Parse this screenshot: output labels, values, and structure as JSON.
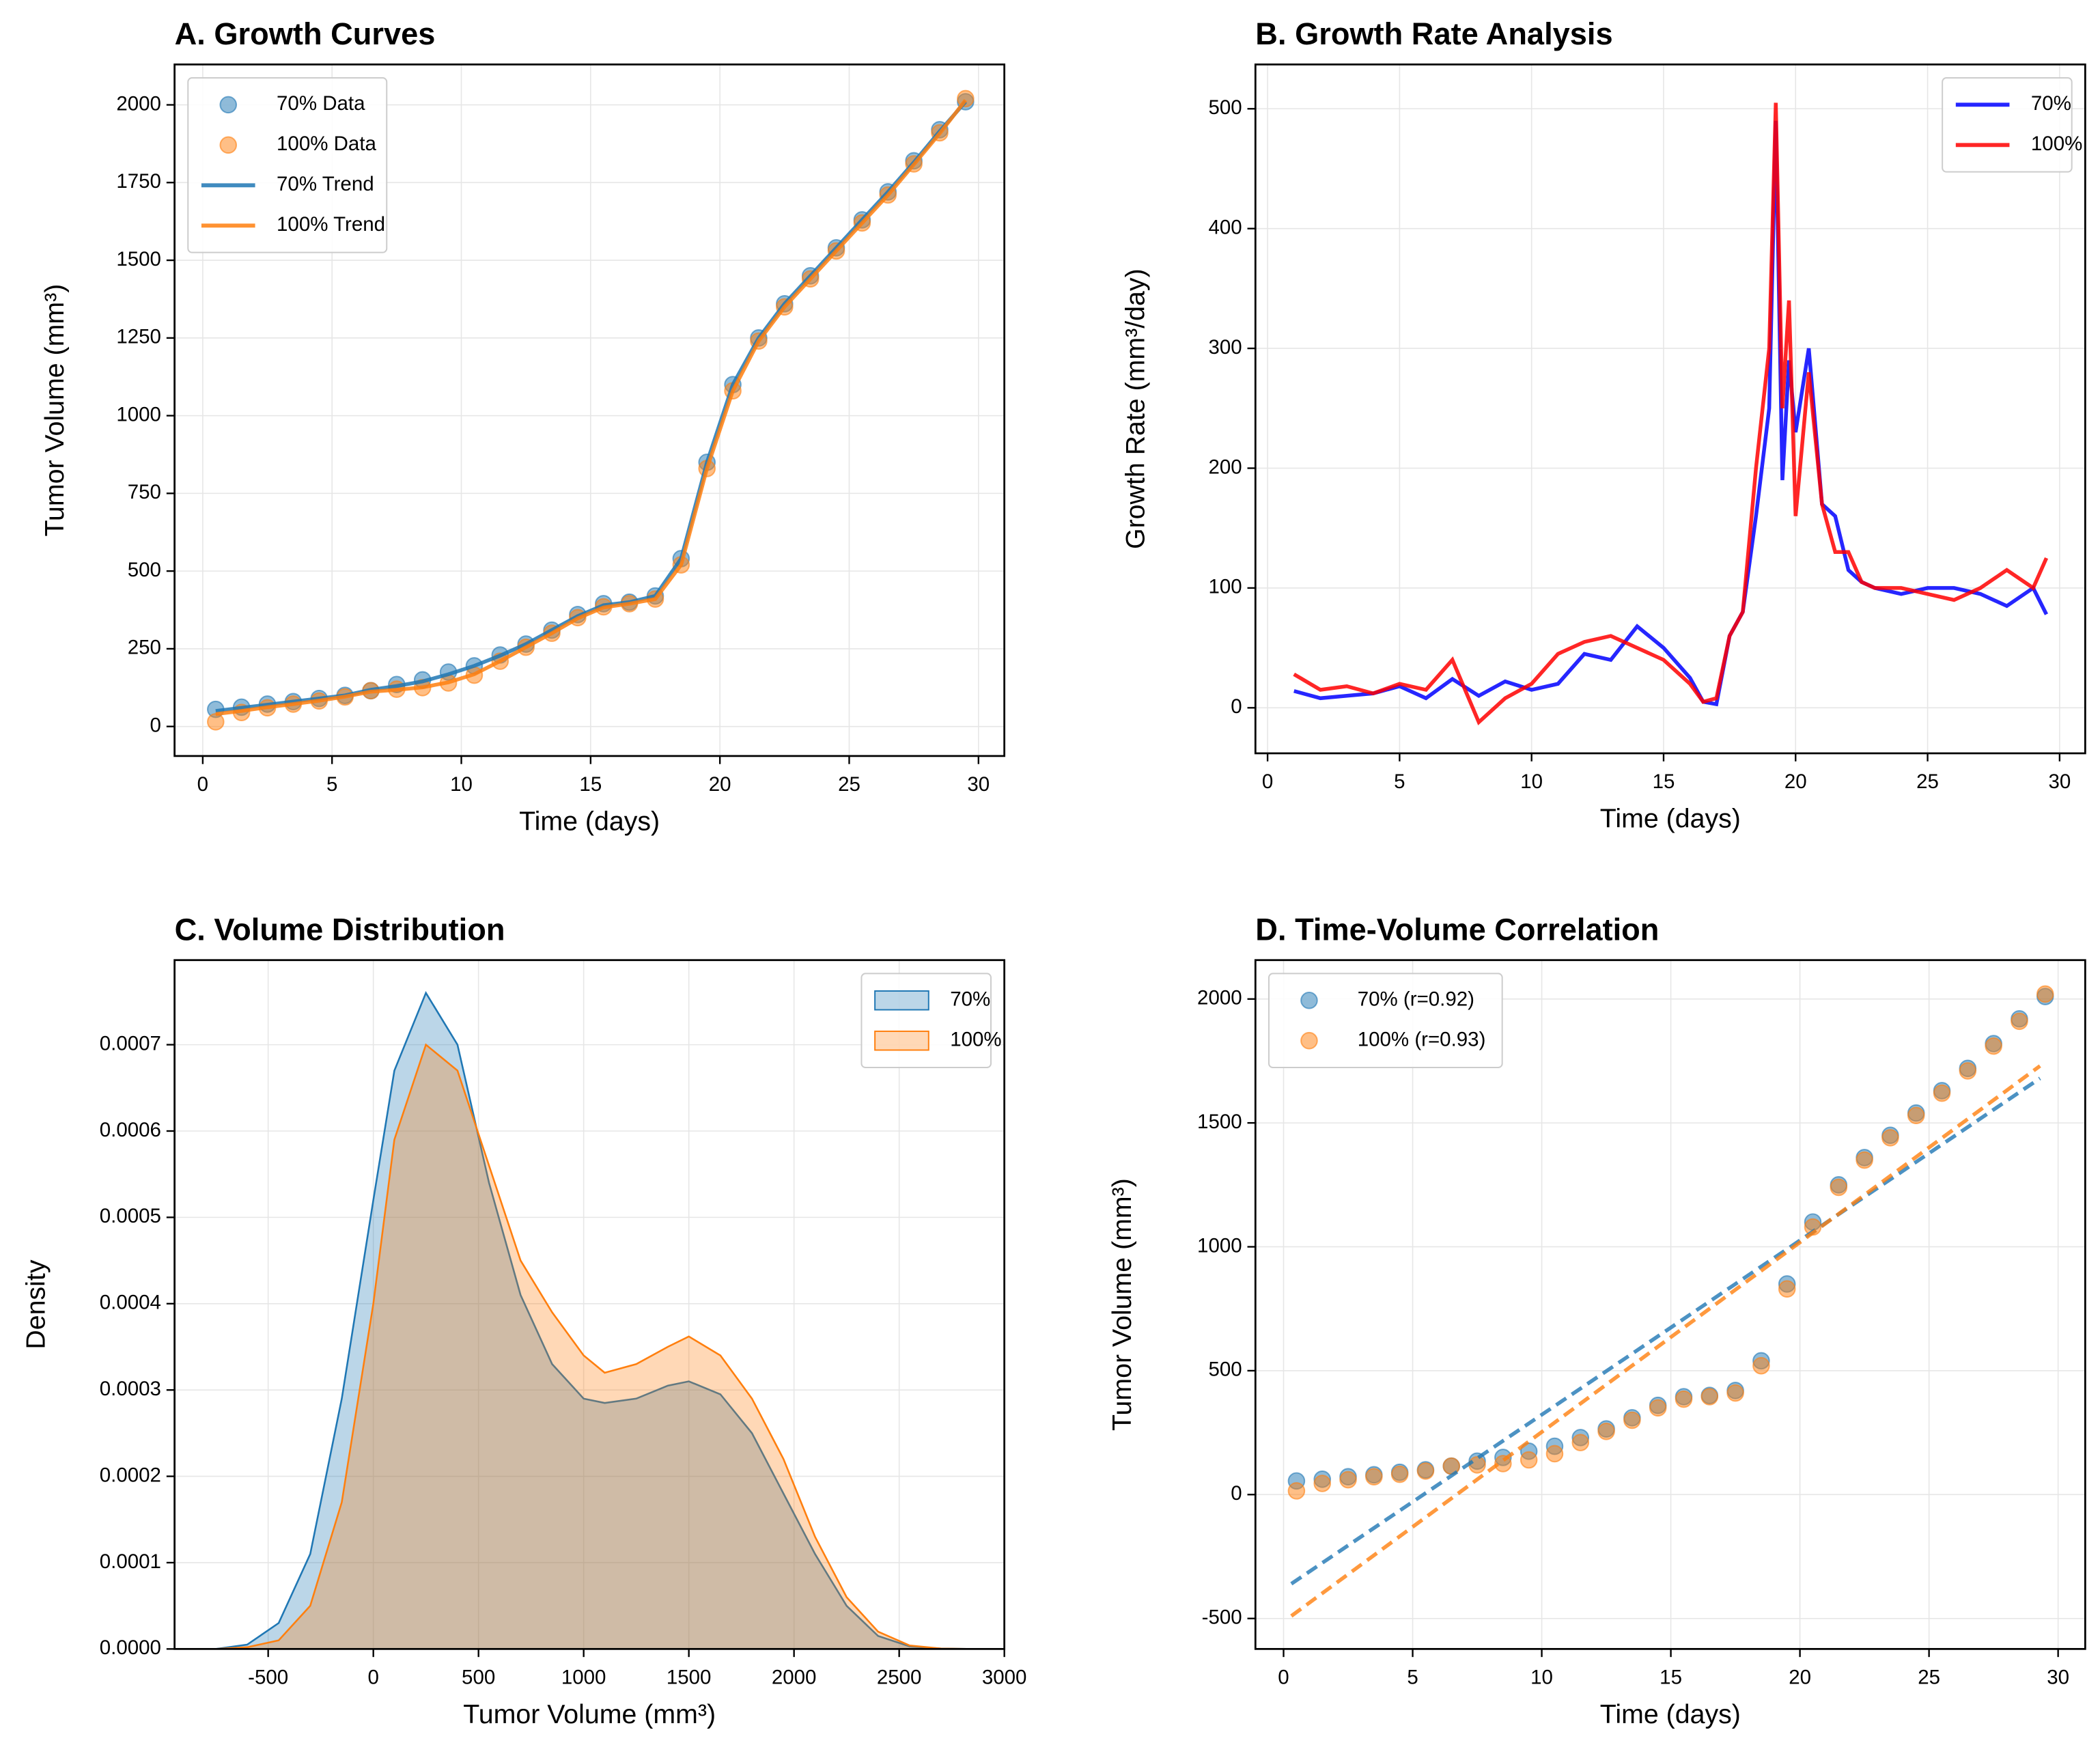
{
  "chart_data": [
    {
      "type": "scatter",
      "title": "A. Growth Curves",
      "xlabel": "Time (days)",
      "ylabel": "Tumor Volume (mm³)",
      "x": [
        0.5,
        1.5,
        2.5,
        3.5,
        4.5,
        5.5,
        6.5,
        7.5,
        8.5,
        9.5,
        10.5,
        11.5,
        12.5,
        13.5,
        14.5,
        15.5,
        16.5,
        17.5,
        18.5,
        19.5,
        20.5,
        21.5,
        22.5,
        23.5,
        24.5,
        25.5,
        26.5,
        27.5,
        28.5,
        29.5
      ],
      "series": [
        {
          "name": "70% Data",
          "style": "scatter",
          "color": "#1f77b4",
          "values": [
            55,
            62,
            72,
            80,
            90,
            100,
            115,
            135,
            150,
            175,
            195,
            230,
            265,
            310,
            360,
            395,
            400,
            420,
            540,
            850,
            1100,
            1250,
            1360,
            1450,
            1540,
            1630,
            1720,
            1820,
            1920,
            2010
          ]
        },
        {
          "name": "100% Data",
          "style": "scatter",
          "color": "#ff7f0e",
          "values": [
            15,
            45,
            60,
            72,
            82,
            95,
            115,
            120,
            125,
            140,
            165,
            210,
            255,
            300,
            350,
            385,
            395,
            410,
            520,
            830,
            1080,
            1240,
            1350,
            1440,
            1530,
            1620,
            1710,
            1810,
            1910,
            2020
          ]
        },
        {
          "name": "70% Trend",
          "style": "line",
          "color": "#1f77b4",
          "values": [
            50,
            60,
            70,
            80,
            90,
            100,
            118,
            130,
            145,
            168,
            195,
            228,
            265,
            310,
            355,
            390,
            400,
            420,
            540,
            850,
            1100,
            1250,
            1360,
            1450,
            1540,
            1630,
            1720,
            1815,
            1915,
            2010
          ]
        },
        {
          "name": "100% Trend",
          "style": "line",
          "color": "#ff7f0e",
          "values": [
            40,
            50,
            62,
            72,
            83,
            96,
            112,
            118,
            126,
            142,
            168,
            210,
            255,
            300,
            348,
            383,
            395,
            410,
            520,
            830,
            1080,
            1240,
            1350,
            1440,
            1530,
            1620,
            1710,
            1808,
            1908,
            2015
          ]
        }
      ],
      "xlim": [
        -1.09,
        31.0
      ],
      "ylim": [
        -95,
        2130
      ],
      "xticks": [
        0,
        5,
        10,
        15,
        20,
        25,
        30
      ],
      "yticks": [
        0,
        250,
        500,
        750,
        1000,
        1250,
        1500,
        1750,
        2000
      ],
      "grid": true,
      "legend": "upper left"
    },
    {
      "type": "line",
      "title": "B. Growth Rate Analysis",
      "xlabel": "Time (days)",
      "ylabel": "Growth Rate (mm³/day)",
      "x": [
        1,
        2,
        3,
        4,
        5,
        6,
        7,
        8,
        9,
        10,
        11,
        12,
        13,
        14,
        15,
        16,
        16.5,
        17,
        17.5,
        18,
        18.5,
        19,
        19.25,
        19.5,
        19.75,
        20,
        20.5,
        21,
        21.5,
        22,
        22.5,
        23,
        24,
        25,
        26,
        27,
        28,
        29,
        29.5
      ],
      "series": [
        {
          "name": "70%",
          "style": "line",
          "color": "#0000ff",
          "values": [
            14,
            8,
            10,
            12,
            18,
            8,
            24,
            10,
            22,
            15,
            20,
            45,
            40,
            68,
            50,
            25,
            5,
            3,
            60,
            80,
            160,
            250,
            490,
            190,
            290,
            230,
            300,
            170,
            160,
            115,
            105,
            100,
            95,
            100,
            100,
            95,
            85,
            100,
            78
          ]
        },
        {
          "name": "100%",
          "style": "line",
          "color": "#ff0000",
          "values": [
            28,
            15,
            18,
            12,
            20,
            15,
            40,
            -12,
            8,
            20,
            45,
            55,
            60,
            50,
            40,
            20,
            5,
            8,
            60,
            80,
            200,
            300,
            505,
            250,
            340,
            160,
            280,
            170,
            130,
            130,
            105,
            100,
            100,
            95,
            90,
            100,
            115,
            100,
            125
          ]
        }
      ],
      "xlim": [
        -0.46,
        30.97
      ],
      "ylim": [
        -38,
        537
      ],
      "xticks": [
        0,
        5,
        10,
        15,
        20,
        25,
        30
      ],
      "yticks": [
        0,
        100,
        200,
        300,
        400,
        500
      ],
      "grid": true,
      "legend": "upper right"
    },
    {
      "type": "area",
      "title": "C. Volume Distribution",
      "xlabel": "Tumor Volume (mm³)",
      "ylabel": "Density",
      "x": [
        -750,
        -600,
        -450,
        -300,
        -150,
        0,
        100,
        250,
        400,
        550,
        700,
        850,
        1000,
        1100,
        1250,
        1400,
        1500,
        1650,
        1800,
        1950,
        2100,
        2250,
        2400,
        2550,
        2700,
        2850
      ],
      "series": [
        {
          "name": "70%",
          "style": "area",
          "color": "#1f77b4",
          "values": [
            0,
            5e-06,
            3e-05,
            0.00011,
            0.00029,
            0.00052,
            0.00067,
            0.00076,
            0.0007,
            0.00054,
            0.00041,
            0.00033,
            0.00029,
            0.000285,
            0.00029,
            0.000305,
            0.00031,
            0.000295,
            0.00025,
            0.00018,
            0.00011,
            5e-05,
            1.5e-05,
            3e-06,
            5e-07,
            0
          ]
        },
        {
          "name": "100%",
          "style": "area",
          "color": "#ff7f0e",
          "values": [
            0,
            2e-06,
            1e-05,
            5e-05,
            0.00017,
            0.0004,
            0.00059,
            0.0007,
            0.00067,
            0.00056,
            0.00045,
            0.00039,
            0.00034,
            0.00032,
            0.00033,
            0.00035,
            0.000362,
            0.00034,
            0.00029,
            0.00022,
            0.00013,
            6e-05,
            2e-05,
            4e-06,
            5e-07,
            0
          ]
        }
      ],
      "xlim": [
        -945,
        3000
      ],
      "ylim": [
        0,
        0.000798
      ],
      "xticks": [
        -500,
        0,
        500,
        1000,
        1500,
        2000,
        2500,
        3000
      ],
      "yticks": [
        {
          "value": 0,
          "label": "0.0000"
        },
        {
          "value": 0.0001,
          "label": "0.0001"
        },
        {
          "value": 0.0002,
          "label": "0.0002"
        },
        {
          "value": 0.0003,
          "label": "0.0003"
        },
        {
          "value": 0.0004,
          "label": "0.0004"
        },
        {
          "value": 0.0005,
          "label": "0.0005"
        },
        {
          "value": 0.0006,
          "label": "0.0006"
        },
        {
          "value": 0.0007,
          "label": "0.0007"
        }
      ],
      "grid": true,
      "legend": "upper right"
    },
    {
      "type": "scatter",
      "title": "D. Time-Volume Correlation",
      "xlabel": "Time (days)",
      "ylabel": "Tumor Volume (mm³)",
      "x": [
        0.5,
        1.5,
        2.5,
        3.5,
        4.5,
        5.5,
        6.5,
        7.5,
        8.5,
        9.5,
        10.5,
        11.5,
        12.5,
        13.5,
        14.5,
        15.5,
        16.5,
        17.5,
        18.5,
        19.5,
        20.5,
        21.5,
        22.5,
        23.5,
        24.5,
        25.5,
        26.5,
        27.5,
        28.5,
        29.5
      ],
      "series": [
        {
          "name": "70% (r=0.92)",
          "style": "scatter",
          "color": "#1f77b4",
          "values": [
            55,
            62,
            72,
            80,
            90,
            100,
            115,
            135,
            150,
            175,
            195,
            230,
            265,
            310,
            360,
            395,
            400,
            420,
            540,
            850,
            1100,
            1250,
            1360,
            1450,
            1540,
            1630,
            1720,
            1820,
            1920,
            2010
          ]
        },
        {
          "name": "100% (r=0.93)",
          "style": "scatter",
          "color": "#ff7f0e",
          "values": [
            15,
            45,
            60,
            72,
            82,
            95,
            115,
            120,
            125,
            140,
            165,
            210,
            255,
            300,
            350,
            385,
            395,
            410,
            520,
            830,
            1080,
            1240,
            1350,
            1440,
            1530,
            1620,
            1710,
            1810,
            1910,
            2020
          ]
        },
        {
          "style": "dashed",
          "color": "#1f77b4",
          "x": [
            0.3,
            29.3
          ],
          "values": [
            -360,
            1680
          ]
        },
        {
          "style": "dashed",
          "color": "#ff7f0e",
          "x": [
            0.3,
            29.3
          ],
          "values": [
            -490,
            1730
          ]
        }
      ],
      "xlim": [
        -1.09,
        31.05
      ],
      "ylim": [
        -623,
        2157
      ],
      "xticks": [
        0,
        5,
        10,
        15,
        20,
        25,
        30
      ],
      "yticks": [
        -500,
        0,
        500,
        1000,
        1500,
        2000
      ],
      "grid": true,
      "legend": "upper left"
    }
  ]
}
